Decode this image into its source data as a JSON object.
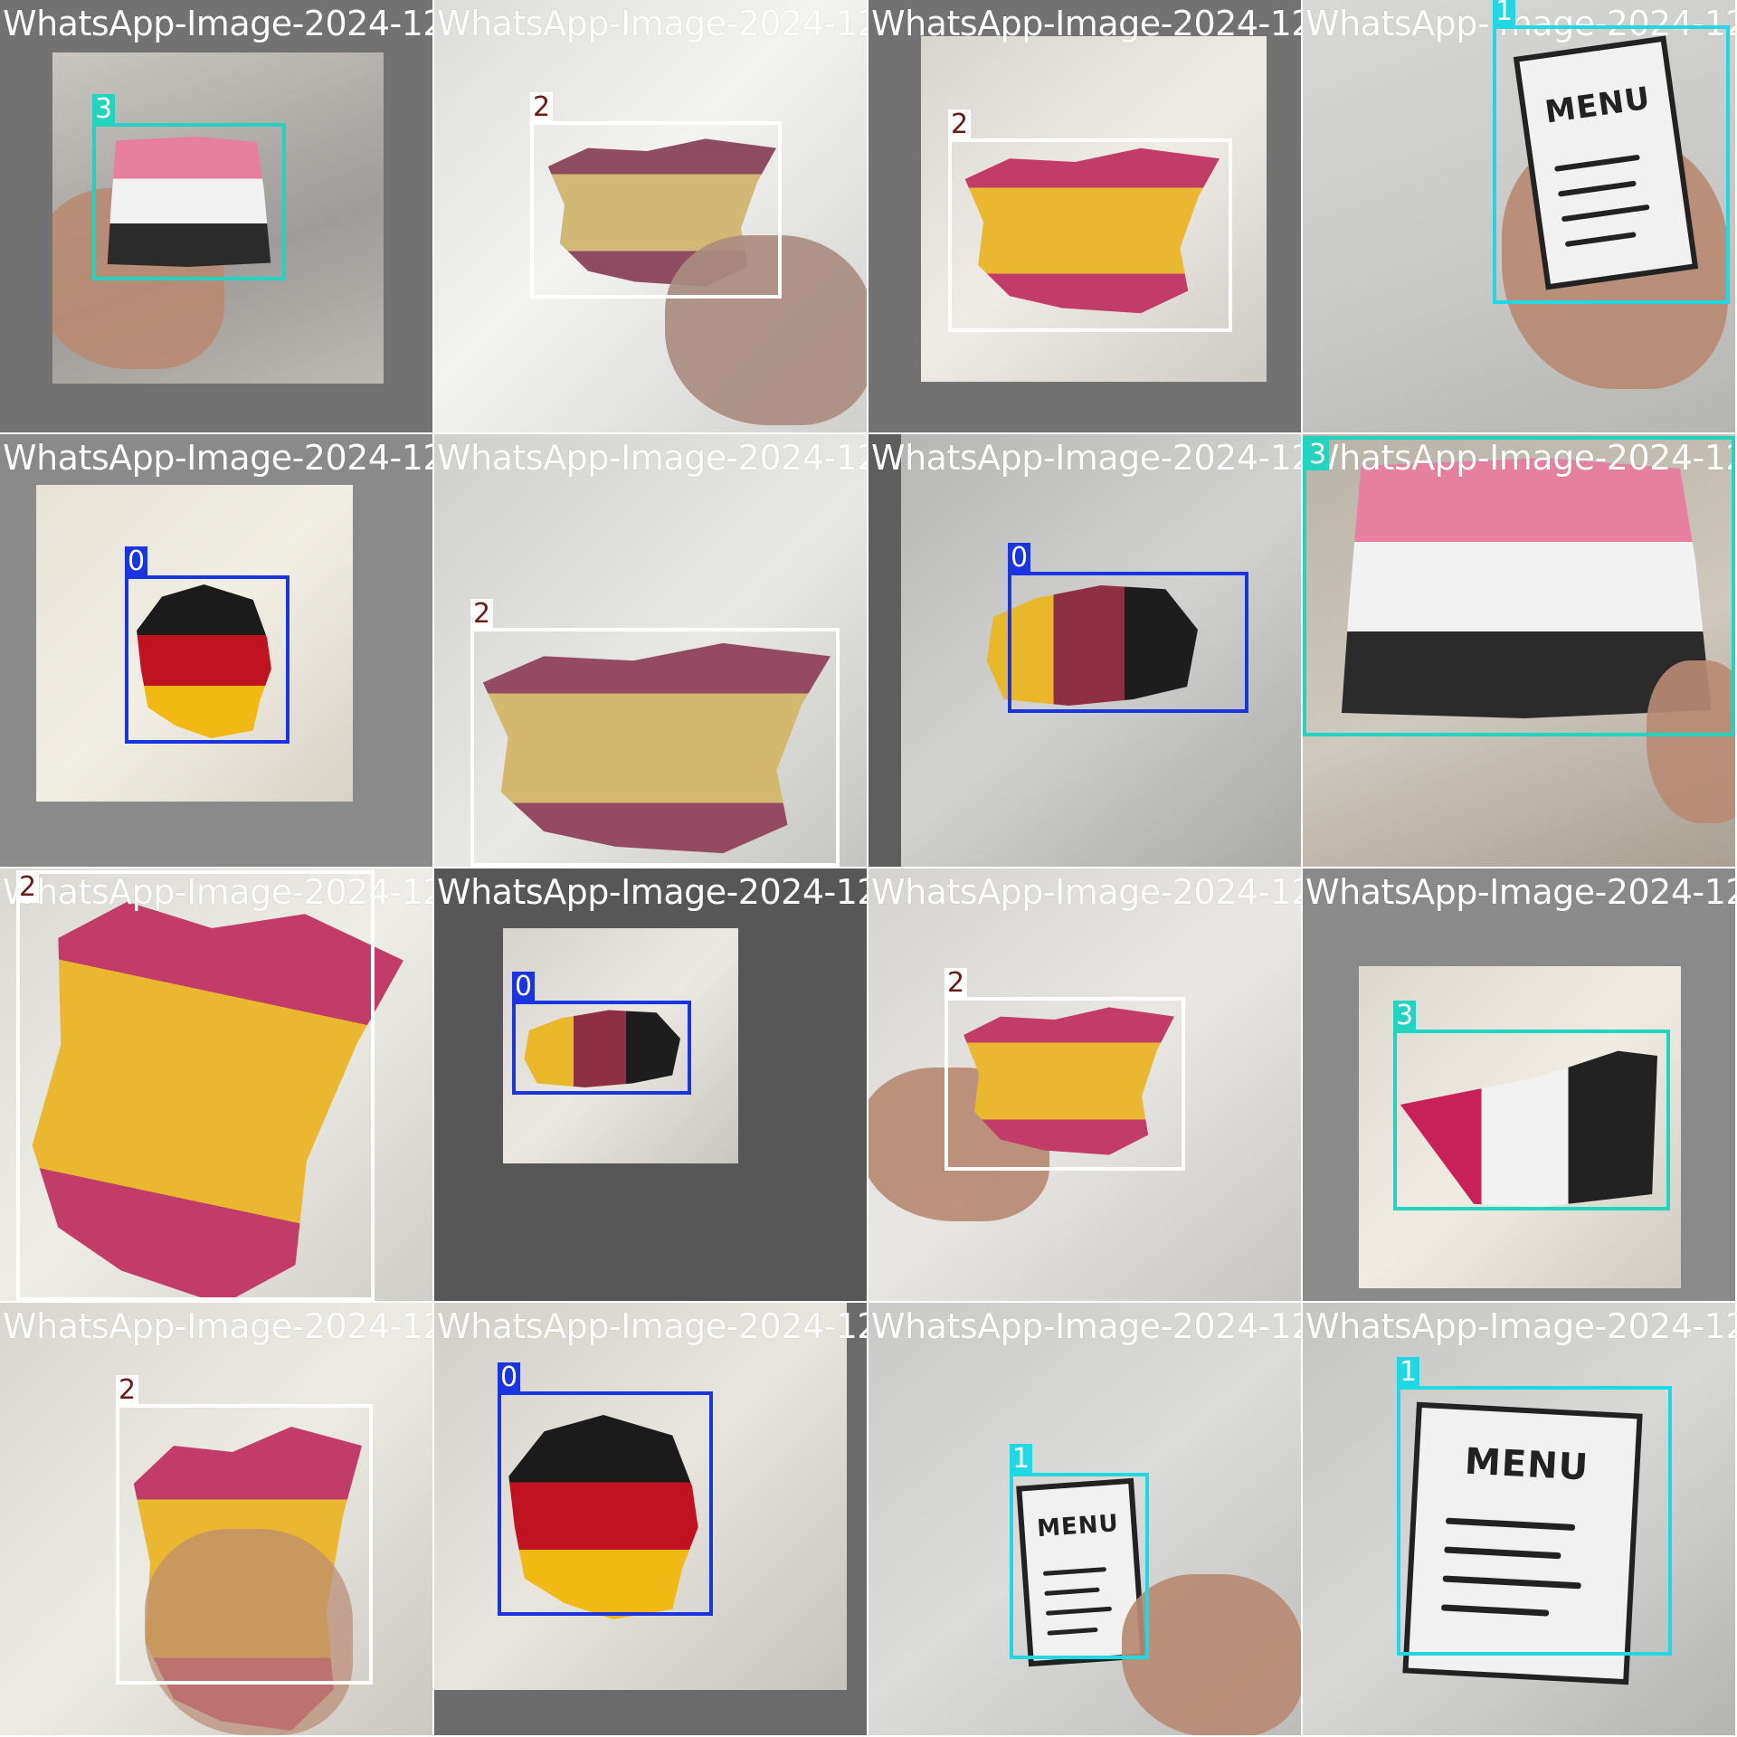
{
  "mosaic": {
    "class_colors": {
      "0": "#1a35e0",
      "1": "#1fd8e4",
      "2": "#ffffff",
      "3": "#22d3bf"
    },
    "tiles": [
      {
        "file": "WhatsApp-Image-2024-12-05-at-7.35.42-PM",
        "labels": [
          "3"
        ]
      },
      {
        "file": "WhatsApp-Image-2024-12-05-at-7.35.42-PM",
        "labels": [
          "2"
        ]
      },
      {
        "file": "WhatsApp-Image-2024-12-05-at-7.35.40-PM",
        "labels": [
          "2"
        ]
      },
      {
        "file": "WhatsApp-Image-2024-12-05-at-7.35.40-PM",
        "labels": [
          "1"
        ]
      },
      {
        "file": "WhatsApp-Image-2024-12-05-at-7.35.40-PM",
        "labels": [
          "0"
        ]
      },
      {
        "file": "WhatsApp-Image-2024-12-05-at-7.35.40-PM",
        "labels": [
          "2"
        ]
      },
      {
        "file": "WhatsApp-Image-2024-12-05-at-7.35.40-PM",
        "labels": [
          "0"
        ]
      },
      {
        "file": "WhatsApp-Image-2024-12-05-at-7.37.05-PM",
        "labels": [
          "3"
        ]
      },
      {
        "file": "WhatsApp-Image-2024-12-05-at-7.35.44-PM",
        "labels": [
          "2"
        ]
      },
      {
        "file": "WhatsApp-Image-2024-12-05-at-7.35.44-PM",
        "labels": [
          "0"
        ]
      },
      {
        "file": "WhatsApp-Image-2024-12-05-at-7.37.05-PM",
        "labels": [
          "2"
        ]
      },
      {
        "file": "WhatsApp-Image-2024-12-05-at-7.35.43-PM",
        "labels": [
          "3"
        ]
      },
      {
        "file": "WhatsApp-Image-2024-12-05-at-7.35.46-PM",
        "labels": [
          "2"
        ]
      },
      {
        "file": "WhatsApp-Image-2024-12-05-at-7.37.09-PM",
        "labels": [
          "0"
        ]
      },
      {
        "file": "WhatsApp-Image-2024-12-05-at-7.39.22-PM",
        "labels": [
          "1"
        ]
      },
      {
        "file": "WhatsApp-Image-2024-12-05-at-7.39.22-PM",
        "labels": [
          "1"
        ]
      }
    ],
    "menu_text": "MENU"
  }
}
